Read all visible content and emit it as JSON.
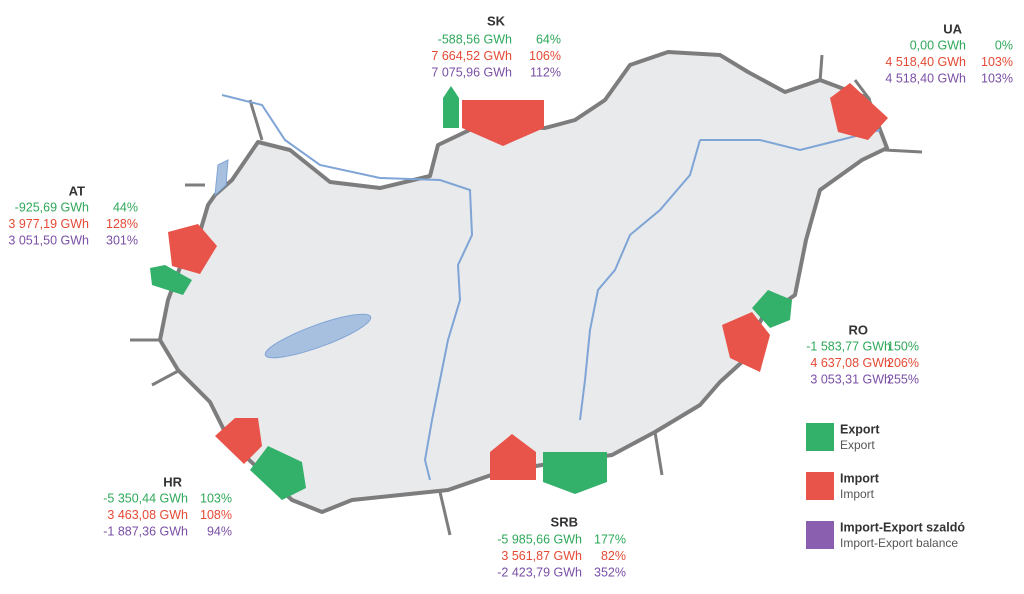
{
  "borders": [
    {
      "code": "SK",
      "export": "-588,56 GWh",
      "export_pct": "64%",
      "import": "7 664,52 GWh",
      "import_pct": "106%",
      "balance": "7 075,96 GWh",
      "balance_pct": "112%"
    },
    {
      "code": "UA",
      "export": "0,00 GWh",
      "export_pct": "0%",
      "import": "4 518,40 GWh",
      "import_pct": "103%",
      "balance": "4 518,40 GWh",
      "balance_pct": "103%"
    },
    {
      "code": "AT",
      "export": "-925,69 GWh",
      "export_pct": "44%",
      "import": "3 977,19 GWh",
      "import_pct": "128%",
      "balance": "3 051,50 GWh",
      "balance_pct": "301%"
    },
    {
      "code": "RO",
      "export": "-1 583,77 GWh",
      "export_pct": "150%",
      "import": "4 637,08 GWh",
      "import_pct": "206%",
      "balance": "3 053,31 GWh",
      "balance_pct": "255%"
    },
    {
      "code": "HR",
      "export": "-5 350,44 GWh",
      "export_pct": "103%",
      "import": "3 463,08 GWh",
      "import_pct": "108%",
      "balance": "-1 887,36 GWh",
      "balance_pct": "94%"
    },
    {
      "code": "SRB",
      "export": "-5 985,66 GWh",
      "export_pct": "177%",
      "import": "3 561,87 GWh",
      "import_pct": "82%",
      "balance": "-2 423,79 GWh",
      "balance_pct": "352%"
    }
  ],
  "legend": [
    {
      "title": "Export",
      "subtitle": "Export"
    },
    {
      "title": "Import",
      "subtitle": "Import"
    },
    {
      "title": "Import-Export szaldó",
      "subtitle": "Import-Export balance"
    }
  ]
}
